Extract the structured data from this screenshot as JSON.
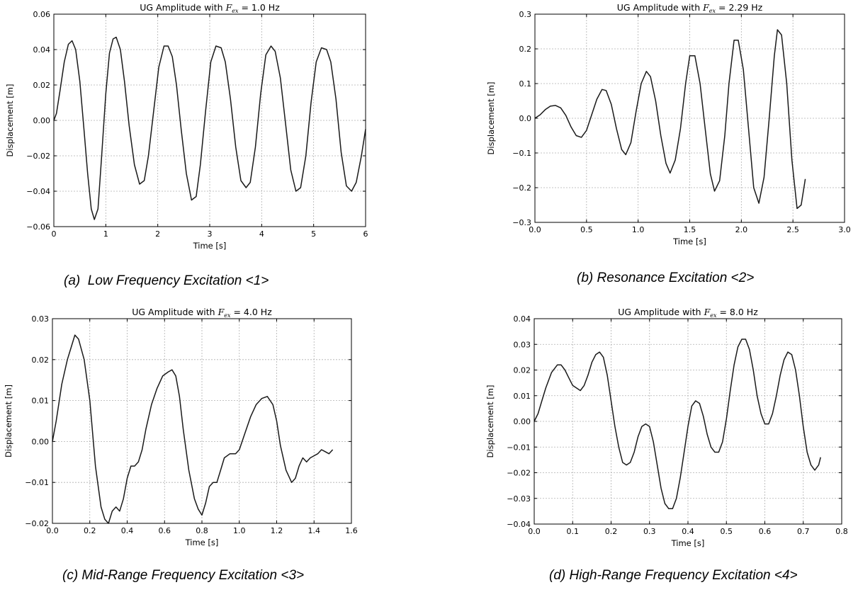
{
  "chart_data": [
    {
      "type": "line",
      "title": "UG Amplitude with F_ex = 1.0 Hz",
      "title_parts": [
        "UG Amplitude with ",
        "F",
        "ex",
        " = 1.0 Hz"
      ],
      "xlabel": "Time [s]",
      "ylabel": "Displacement [m]",
      "xlim": [
        0,
        6
      ],
      "ylim": [
        -0.06,
        0.06
      ],
      "xticks": [
        0,
        1,
        2,
        3,
        4,
        5,
        6
      ],
      "xtick_labels": [
        "0",
        "1",
        "2",
        "3",
        "4",
        "5",
        "6"
      ],
      "yticks": [
        -0.06,
        -0.04,
        -0.02,
        0.0,
        0.02,
        0.04,
        0.06
      ],
      "ytick_labels": [
        "−0.06",
        "−0.04",
        "−0.02",
        "0.00",
        "0.02",
        "0.04",
        "0.06"
      ],
      "grid": true,
      "series": [
        {
          "x": [
            0,
            0.05,
            0.12,
            0.2,
            0.28,
            0.35,
            0.42,
            0.5,
            0.58,
            0.65,
            0.72,
            0.78,
            0.85,
            0.92,
            1.0,
            1.07,
            1.14,
            1.2,
            1.28,
            1.36,
            1.45,
            1.55,
            1.65,
            1.74,
            1.82,
            1.92,
            2.02,
            2.12,
            2.2,
            2.28,
            2.36,
            2.45,
            2.55,
            2.65,
            2.74,
            2.82,
            2.92,
            3.02,
            3.12,
            3.22,
            3.3,
            3.4,
            3.5,
            3.6,
            3.7,
            3.78,
            3.88,
            3.98,
            4.08,
            4.18,
            4.26,
            4.36,
            4.46,
            4.56,
            4.66,
            4.75,
            4.85,
            4.95,
            5.05,
            5.15,
            5.25,
            5.33,
            5.43,
            5.53,
            5.63,
            5.73,
            5.82,
            5.92,
            6.0
          ],
          "y": [
            0.0,
            0.004,
            0.017,
            0.033,
            0.043,
            0.045,
            0.04,
            0.022,
            -0.005,
            -0.03,
            -0.05,
            -0.056,
            -0.05,
            -0.02,
            0.015,
            0.038,
            0.046,
            0.047,
            0.04,
            0.022,
            -0.003,
            -0.025,
            -0.036,
            -0.034,
            -0.02,
            0.005,
            0.03,
            0.042,
            0.042,
            0.036,
            0.02,
            -0.005,
            -0.03,
            -0.045,
            -0.043,
            -0.025,
            0.005,
            0.033,
            0.042,
            0.041,
            0.033,
            0.012,
            -0.015,
            -0.034,
            -0.038,
            -0.035,
            -0.015,
            0.015,
            0.037,
            0.042,
            0.039,
            0.024,
            -0.002,
            -0.028,
            -0.04,
            -0.038,
            -0.02,
            0.01,
            0.033,
            0.041,
            0.04,
            0.033,
            0.012,
            -0.018,
            -0.037,
            -0.04,
            -0.035,
            -0.02,
            -0.005
          ]
        }
      ]
    },
    {
      "type": "line",
      "title": "UG Amplitude with F_ex = 2.29 Hz",
      "title_parts": [
        "UG Amplitude with ",
        "F",
        "ex",
        " = 2.29 Hz"
      ],
      "xlabel": "Time [s]",
      "ylabel": "Displacement [m]",
      "xlim": [
        0.0,
        3.0
      ],
      "ylim": [
        -0.3,
        0.3
      ],
      "xticks": [
        0.0,
        0.5,
        1.0,
        1.5,
        2.0,
        2.5,
        3.0
      ],
      "xtick_labels": [
        "0.0",
        "0.5",
        "1.0",
        "1.5",
        "2.0",
        "2.5",
        "3.0"
      ],
      "yticks": [
        -0.3,
        -0.2,
        -0.1,
        0.0,
        0.1,
        0.2,
        0.3
      ],
      "ytick_labels": [
        "−0.3",
        "−0.2",
        "−0.1",
        "0.0",
        "0.1",
        "0.2",
        "0.3"
      ],
      "grid": true,
      "series": [
        {
          "x": [
            0.0,
            0.05,
            0.1,
            0.15,
            0.2,
            0.25,
            0.3,
            0.35,
            0.4,
            0.45,
            0.5,
            0.55,
            0.6,
            0.65,
            0.69,
            0.74,
            0.79,
            0.84,
            0.88,
            0.93,
            0.98,
            1.03,
            1.08,
            1.12,
            1.17,
            1.22,
            1.27,
            1.31,
            1.36,
            1.41,
            1.46,
            1.5,
            1.55,
            1.6,
            1.65,
            1.7,
            1.74,
            1.79,
            1.84,
            1.88,
            1.93,
            1.97,
            2.02,
            2.07,
            2.12,
            2.17,
            2.22,
            2.27,
            2.32,
            2.35,
            2.39,
            2.44,
            2.49,
            2.54,
            2.58,
            2.62
          ],
          "y": [
            0.0,
            0.01,
            0.025,
            0.035,
            0.037,
            0.03,
            0.008,
            -0.025,
            -0.05,
            -0.055,
            -0.035,
            0.01,
            0.055,
            0.083,
            0.08,
            0.04,
            -0.03,
            -0.09,
            -0.105,
            -0.07,
            0.02,
            0.1,
            0.135,
            0.12,
            0.05,
            -0.05,
            -0.13,
            -0.158,
            -0.12,
            -0.03,
            0.1,
            0.18,
            0.18,
            0.1,
            -0.03,
            -0.16,
            -0.21,
            -0.18,
            -0.05,
            0.1,
            0.225,
            0.225,
            0.14,
            -0.03,
            -0.2,
            -0.245,
            -0.17,
            0.0,
            0.18,
            0.255,
            0.24,
            0.1,
            -0.12,
            -0.26,
            -0.25,
            -0.175
          ]
        }
      ]
    },
    {
      "type": "line",
      "title": "UG Amplitude with F_ex = 4.0 Hz",
      "title_parts": [
        "UG Amplitude with ",
        "F",
        "ex",
        " = 4.0 Hz"
      ],
      "xlabel": "Time [s]",
      "ylabel": "Displacement [m]",
      "xlim": [
        0.0,
        1.6
      ],
      "ylim": [
        -0.02,
        0.03
      ],
      "xticks": [
        0.0,
        0.2,
        0.4,
        0.6,
        0.8,
        1.0,
        1.2,
        1.4,
        1.6
      ],
      "xtick_labels": [
        "0.0",
        "0.2",
        "0.4",
        "0.6",
        "0.8",
        "1.0",
        "1.2",
        "1.4",
        "1.6"
      ],
      "yticks": [
        -0.02,
        -0.01,
        0.0,
        0.01,
        0.02,
        0.03
      ],
      "ytick_labels": [
        "−0.02",
        "−0.01",
        "0.00",
        "0.01",
        "0.02",
        "0.03"
      ],
      "grid": true,
      "series": [
        {
          "x": [
            0.0,
            0.02,
            0.05,
            0.08,
            0.1,
            0.12,
            0.14,
            0.17,
            0.2,
            0.23,
            0.26,
            0.28,
            0.3,
            0.32,
            0.34,
            0.36,
            0.38,
            0.4,
            0.42,
            0.44,
            0.46,
            0.48,
            0.5,
            0.53,
            0.56,
            0.59,
            0.62,
            0.64,
            0.66,
            0.68,
            0.7,
            0.73,
            0.76,
            0.78,
            0.8,
            0.82,
            0.84,
            0.86,
            0.88,
            0.9,
            0.92,
            0.95,
            0.98,
            1.0,
            1.03,
            1.06,
            1.09,
            1.12,
            1.15,
            1.18,
            1.2,
            1.22,
            1.25,
            1.28,
            1.3,
            1.32,
            1.34,
            1.36,
            1.38,
            1.4,
            1.42,
            1.44,
            1.46,
            1.48,
            1.5
          ],
          "y": [
            0.0,
            0.005,
            0.014,
            0.02,
            0.023,
            0.026,
            0.025,
            0.02,
            0.01,
            -0.006,
            -0.016,
            -0.019,
            -0.02,
            -0.017,
            -0.016,
            -0.017,
            -0.014,
            -0.009,
            -0.006,
            -0.006,
            -0.005,
            -0.002,
            0.003,
            0.009,
            0.013,
            0.016,
            0.017,
            0.0175,
            0.016,
            0.011,
            0.003,
            -0.007,
            -0.014,
            -0.0165,
            -0.018,
            -0.015,
            -0.011,
            -0.01,
            -0.01,
            -0.007,
            -0.004,
            -0.003,
            -0.003,
            -0.002,
            0.002,
            0.006,
            0.009,
            0.0105,
            0.011,
            0.009,
            0.005,
            -0.001,
            -0.007,
            -0.01,
            -0.009,
            -0.006,
            -0.004,
            -0.005,
            -0.004,
            -0.0035,
            -0.003,
            -0.002,
            -0.0025,
            -0.003,
            -0.002
          ]
        }
      ]
    },
    {
      "type": "line",
      "title": "UG Amplitude with F_ex = 8.0 Hz",
      "title_parts": [
        "UG Amplitude with ",
        "F",
        "ex",
        " = 8.0 Hz"
      ],
      "xlabel": "Time [s]",
      "ylabel": "Displacement [m]",
      "xlim": [
        0.0,
        0.8
      ],
      "ylim": [
        -0.04,
        0.04
      ],
      "xticks": [
        0.0,
        0.1,
        0.2,
        0.3,
        0.4,
        0.5,
        0.6,
        0.7,
        0.8
      ],
      "xtick_labels": [
        "0.0",
        "0.1",
        "0.2",
        "0.3",
        "0.4",
        "0.5",
        "0.6",
        "0.7",
        "0.8"
      ],
      "yticks": [
        -0.04,
        -0.03,
        -0.02,
        -0.01,
        0.0,
        0.01,
        0.02,
        0.03,
        0.04
      ],
      "ytick_labels": [
        "−0.04",
        "−0.03",
        "−0.02",
        "−0.01",
        "0.00",
        "0.01",
        "0.02",
        "0.03",
        "0.04"
      ],
      "grid": true,
      "series": [
        {
          "x": [
            0.0,
            0.01,
            0.02,
            0.03,
            0.045,
            0.06,
            0.07,
            0.08,
            0.09,
            0.1,
            0.11,
            0.12,
            0.13,
            0.14,
            0.15,
            0.16,
            0.17,
            0.18,
            0.19,
            0.2,
            0.21,
            0.22,
            0.23,
            0.24,
            0.25,
            0.26,
            0.27,
            0.28,
            0.29,
            0.3,
            0.31,
            0.32,
            0.33,
            0.34,
            0.35,
            0.36,
            0.37,
            0.38,
            0.39,
            0.4,
            0.41,
            0.42,
            0.43,
            0.44,
            0.45,
            0.46,
            0.47,
            0.48,
            0.49,
            0.5,
            0.51,
            0.52,
            0.53,
            0.54,
            0.55,
            0.56,
            0.57,
            0.58,
            0.59,
            0.6,
            0.61,
            0.62,
            0.63,
            0.64,
            0.65,
            0.66,
            0.67,
            0.68,
            0.69,
            0.7,
            0.71,
            0.72,
            0.73,
            0.74,
            0.745
          ],
          "y": [
            0.0,
            0.003,
            0.008,
            0.013,
            0.019,
            0.022,
            0.022,
            0.02,
            0.017,
            0.014,
            0.013,
            0.012,
            0.014,
            0.018,
            0.023,
            0.026,
            0.027,
            0.025,
            0.018,
            0.008,
            -0.002,
            -0.01,
            -0.016,
            -0.017,
            -0.016,
            -0.012,
            -0.006,
            -0.002,
            -0.001,
            -0.002,
            -0.008,
            -0.017,
            -0.026,
            -0.032,
            -0.034,
            -0.034,
            -0.03,
            -0.022,
            -0.012,
            -0.002,
            0.006,
            0.008,
            0.007,
            0.002,
            -0.005,
            -0.01,
            -0.012,
            -0.012,
            -0.008,
            0.001,
            0.012,
            0.022,
            0.029,
            0.032,
            0.032,
            0.028,
            0.02,
            0.01,
            0.003,
            -0.001,
            -0.001,
            0.003,
            0.01,
            0.018,
            0.024,
            0.027,
            0.026,
            0.02,
            0.01,
            -0.002,
            -0.012,
            -0.017,
            -0.019,
            -0.017,
            -0.014
          ]
        }
      ]
    }
  ],
  "captions": {
    "a_label": "(a)",
    "a_text": "Low Frequency Excitation <1>",
    "b": "(b) Resonance Excitation <2>",
    "c": "(c) Mid-Range Frequency Excitation <3>",
    "d": "(d) High-Range Frequency Excitation <4>"
  },
  "colors": {
    "line": "#1a1a1a",
    "grid": "#b0b0b0",
    "axes": "#000000",
    "background": "#ffffff"
  }
}
